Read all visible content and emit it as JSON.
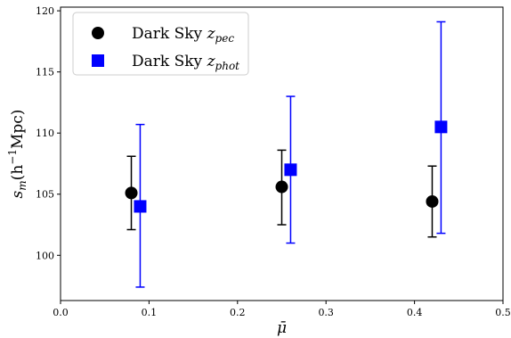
{
  "chart_data": {
    "type": "scatter",
    "title": "",
    "xlabel": "μ̄",
    "ylabel": "s",
    "ylabel_subscript": "m",
    "ylabel_paren": "(h",
    "ylabel_sup": "−1",
    "ylabel_tail": "Mpc)",
    "xlim": [
      0.0,
      0.5
    ],
    "ylim": [
      96.3,
      120.3
    ],
    "xticks": [
      "0.0",
      "0.1",
      "0.2",
      "0.3",
      "0.4",
      "0.5"
    ],
    "yticks": [
      "100",
      "105",
      "110",
      "115",
      "120"
    ],
    "grid": false,
    "legend_position": "upper left",
    "series": [
      {
        "name_main": "Dark Sky ",
        "name_var": "z",
        "name_sub": "pec",
        "marker": "circle",
        "color": "#000000",
        "points": [
          {
            "x": 0.08,
            "y": 105.1,
            "ylo": 102.1,
            "yhi": 108.1
          },
          {
            "x": 0.25,
            "y": 105.6,
            "ylo": 102.5,
            "yhi": 108.6
          },
          {
            "x": 0.42,
            "y": 104.4,
            "ylo": 101.5,
            "yhi": 107.3
          }
        ]
      },
      {
        "name_main": "Dark Sky ",
        "name_var": "z",
        "name_sub": "phot",
        "marker": "square",
        "color": "#0000ff",
        "points": [
          {
            "x": 0.09,
            "y": 104.0,
            "ylo": 97.4,
            "yhi": 110.7
          },
          {
            "x": 0.26,
            "y": 107.0,
            "ylo": 101.0,
            "yhi": 113.0
          },
          {
            "x": 0.43,
            "y": 110.5,
            "ylo": 101.8,
            "yhi": 119.1
          }
        ]
      }
    ]
  }
}
